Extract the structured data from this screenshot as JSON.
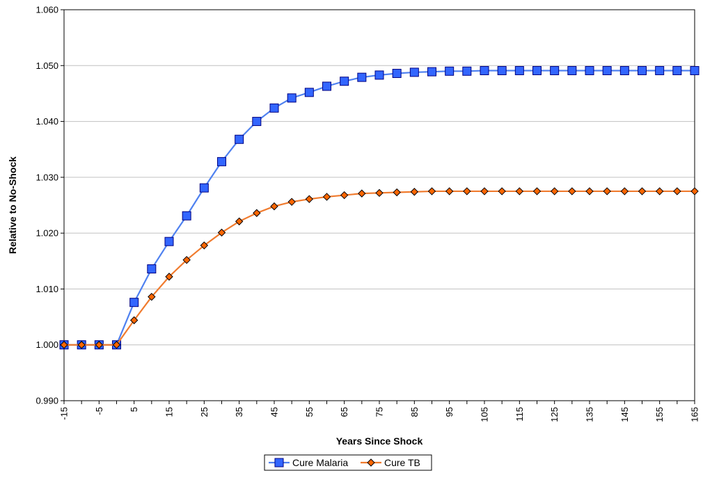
{
  "chart_data": {
    "type": "line",
    "xlabel": "Years Since Shock",
    "ylabel": "Relative to No-Shock",
    "ylim": [
      0.99,
      1.06
    ],
    "y_ticks": [
      "0.990",
      "1.000",
      "1.010",
      "1.020",
      "1.030",
      "1.040",
      "1.050",
      "1.060"
    ],
    "x_tick_labels": [
      "-15",
      "-5",
      "5",
      "15",
      "25",
      "35",
      "45",
      "55",
      "65",
      "75",
      "85",
      "95",
      "105",
      "115",
      "125",
      "135",
      "145",
      "155",
      "165"
    ],
    "x": [
      -15,
      -10,
      -5,
      0,
      5,
      10,
      15,
      20,
      25,
      30,
      35,
      40,
      45,
      50,
      55,
      60,
      65,
      70,
      75,
      80,
      85,
      90,
      95,
      100,
      105,
      110,
      115,
      120,
      125,
      130,
      135,
      140,
      145,
      150,
      155,
      160,
      165
    ],
    "grid": "horizontal",
    "legend_position": "bottom",
    "series": [
      {
        "name": "Cure Malaria",
        "color": "#3366FF",
        "line_color": "#4F81F0",
        "marker": "square",
        "values": [
          1.0,
          1.0,
          1.0,
          1.0,
          1.0076,
          1.0136,
          1.0185,
          1.0231,
          1.0281,
          1.0328,
          1.0368,
          1.04,
          1.0424,
          1.0442,
          1.0452,
          1.0463,
          1.0472,
          1.0479,
          1.0483,
          1.0486,
          1.0488,
          1.0489,
          1.049,
          1.049,
          1.0491,
          1.0491,
          1.0491,
          1.0491,
          1.0491,
          1.0491,
          1.0491,
          1.0491,
          1.0491,
          1.0491,
          1.0491,
          1.0491,
          1.0491
        ]
      },
      {
        "name": "Cure TB",
        "color": "#FF6600",
        "line_color": "#F07B2E",
        "marker": "diamond",
        "values": [
          1.0,
          1.0,
          1.0,
          1.0,
          1.0044,
          1.0086,
          1.0122,
          1.0152,
          1.0178,
          1.0201,
          1.0221,
          1.0236,
          1.0248,
          1.0256,
          1.0261,
          1.0265,
          1.0268,
          1.0271,
          1.0272,
          1.0273,
          1.0274,
          1.0275,
          1.0275,
          1.0275,
          1.0275,
          1.0275,
          1.0275,
          1.0275,
          1.0275,
          1.0275,
          1.0275,
          1.0275,
          1.0275,
          1.0275,
          1.0275,
          1.0275,
          1.0275
        ]
      }
    ]
  }
}
